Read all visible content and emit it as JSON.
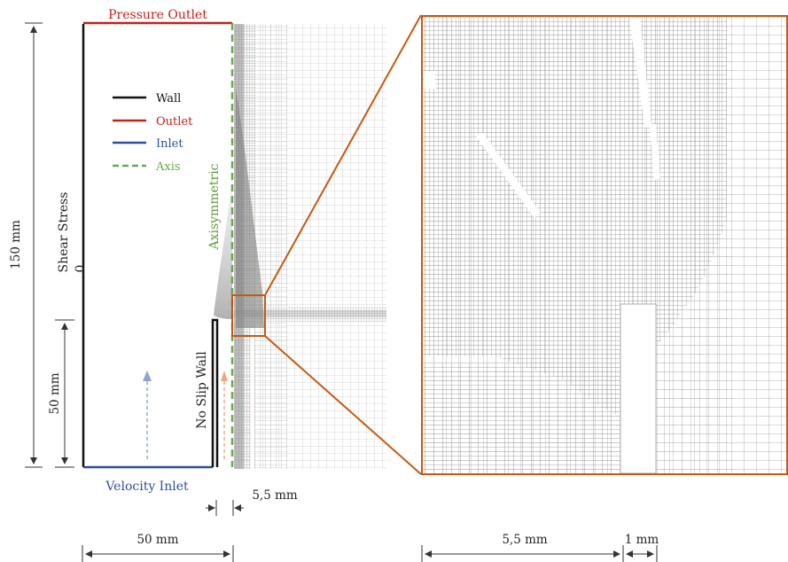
{
  "labels": {
    "pressure_outlet": "Pressure Outlet",
    "velocity_inlet": "Velocity Inlet",
    "shear_stress": "Shear Stress",
    "shear_stress_value": "0",
    "no_slip_wall": "No Slip Wall",
    "axisymmetric": "Axisymmetric"
  },
  "dimensions": {
    "total_height": "150 mm",
    "lower_height": "50 mm",
    "domain_width": "50 mm",
    "gap_width": "5,5 mm",
    "zoom_gap_width": "5,5 mm",
    "zoom_wall_width": "1 mm"
  },
  "legend": [
    {
      "label": "Wall",
      "color": "#111111",
      "dashed": false
    },
    {
      "label": "Outlet",
      "color": "#c0221c",
      "dashed": false
    },
    {
      "label": "Inlet",
      "color": "#2f4f9c",
      "dashed": false
    },
    {
      "label": "Axis",
      "color": "#6aa84f",
      "dashed": true
    }
  ],
  "colors": {
    "wall": "#111111",
    "outlet": "#c0221c",
    "inlet": "#2f4f9c",
    "axis": "#6aa84f",
    "zoom_frame": "#c55a11",
    "mesh": "#8a8a8a",
    "dimension": "#333333"
  }
}
